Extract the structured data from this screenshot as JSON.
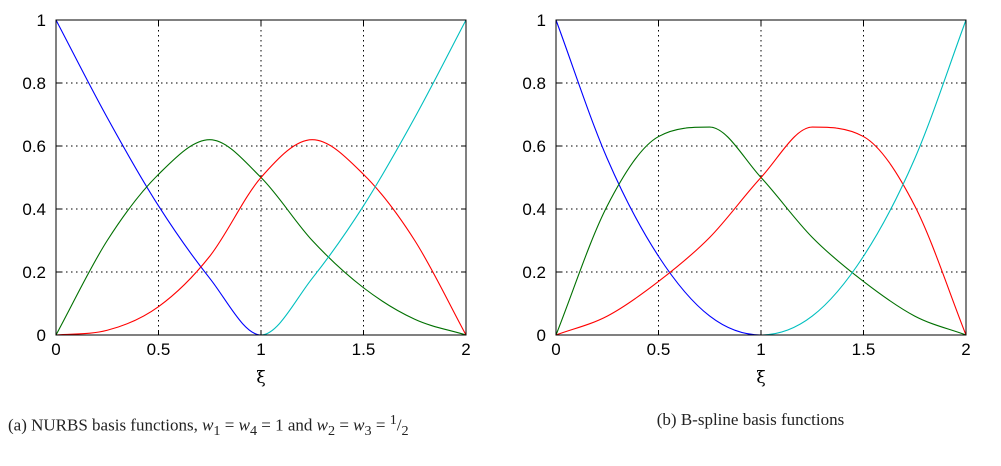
{
  "chart_data": [
    {
      "type": "line",
      "caption": "(a) NURBS basis functions, w1 = w4 = 1 and w2 = w3 = 1/2",
      "caption_parts": {
        "prefix": "(a) NURBS basis functions, ",
        "w1": "w",
        "w1_sub": "1",
        "eq1": " = ",
        "w4": "w",
        "w4_sub": "4",
        "eq2": " = 1 and ",
        "w2": "w",
        "w2_sub": "2",
        "eq3": " = ",
        "w3": "w",
        "w3_sub": "3",
        "eq4": " = ",
        "half_num": "1",
        "half_den": "2"
      },
      "xlabel": "ξ",
      "xlim": [
        0,
        2
      ],
      "ylim": [
        0,
        1
      ],
      "xticks": [
        0,
        0.5,
        1,
        1.5,
        2
      ],
      "xtick_labels": [
        "0",
        "0.5",
        "1",
        "1.5",
        "2"
      ],
      "yticks": [
        0,
        0.2,
        0.4,
        0.6,
        0.8,
        1
      ],
      "ytick_labels": [
        "0",
        "0.2",
        "0.4",
        "0.6",
        "0.8",
        "1"
      ],
      "grid": true,
      "x": [
        0,
        0.25,
        0.5,
        0.75,
        1,
        1.25,
        1.5,
        1.75,
        2
      ],
      "series": [
        {
          "color": "#0000ff",
          "values": [
            1,
            0.69,
            0.41,
            0.18,
            0,
            0,
            0,
            0,
            0
          ]
        },
        {
          "color": "#007000",
          "values": [
            0,
            0.3,
            0.51,
            0.62,
            0.5,
            0.3,
            0.15,
            0.05,
            0
          ]
        },
        {
          "color": "#ff0000",
          "values": [
            0,
            0.015,
            0.09,
            0.25,
            0.5,
            0.62,
            0.51,
            0.3,
            0
          ]
        },
        {
          "color": "#00bfbf",
          "values": [
            0,
            0,
            0,
            0,
            0,
            0.18,
            0.41,
            0.69,
            1
          ]
        }
      ]
    },
    {
      "type": "line",
      "caption": "(b) B-spline basis functions",
      "xlabel": "ξ",
      "xlim": [
        0,
        2
      ],
      "ylim": [
        0,
        1
      ],
      "xticks": [
        0,
        0.5,
        1,
        1.5,
        2
      ],
      "xtick_labels": [
        "0",
        "0.5",
        "1",
        "1.5",
        "2"
      ],
      "yticks": [
        0,
        0.2,
        0.4,
        0.6,
        0.8,
        1
      ],
      "ytick_labels": [
        "0",
        "0.2",
        "0.4",
        "0.6",
        "0.8",
        "1"
      ],
      "grid": true,
      "x": [
        0,
        0.25,
        0.5,
        0.75,
        1,
        1.25,
        1.5,
        1.75,
        2
      ],
      "series": [
        {
          "color": "#0000ff",
          "values": [
            1,
            0.56,
            0.25,
            0.06,
            0,
            0,
            0,
            0,
            0
          ]
        },
        {
          "color": "#007000",
          "values": [
            0,
            0.41,
            0.63,
            0.66,
            0.5,
            0.31,
            0.17,
            0.06,
            0
          ]
        },
        {
          "color": "#ff0000",
          "values": [
            0,
            0.06,
            0.17,
            0.31,
            0.5,
            0.66,
            0.63,
            0.41,
            0
          ]
        },
        {
          "color": "#00bfbf",
          "values": [
            0,
            0,
            0,
            0,
            0,
            0.06,
            0.25,
            0.56,
            1
          ]
        }
      ]
    }
  ]
}
